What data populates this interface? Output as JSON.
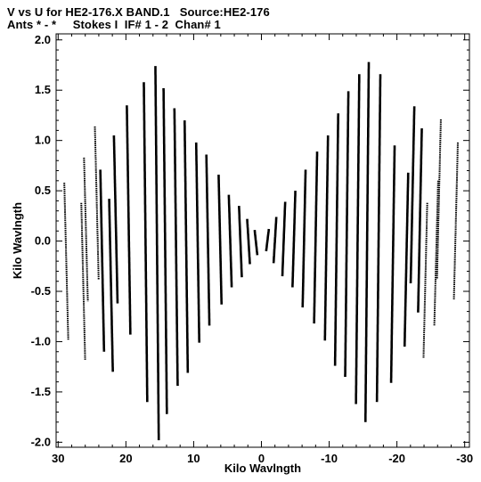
{
  "header": {
    "line1": "V vs U for HE2-176.X BAND.1   Source:HE2-176",
    "line2": "Ants * - *     Stokes I  IF# 1 - 2  Chan# 1"
  },
  "chart_data": {
    "type": "scatter",
    "title": "V vs U for HE2-176.X BAND.1   Source:HE2-176",
    "subtitle": "Ants * - *     Stokes I  IF# 1 - 2  Chan# 1",
    "xlabel": "Kilo Wavlngth",
    "ylabel": "Kilo Wavlngth",
    "xlim": [
      30.3,
      -30.7
    ],
    "ylim": [
      -2.05,
      2.06
    ],
    "x_ticks": [
      30,
      20,
      10,
      0,
      -10,
      -20,
      -30
    ],
    "x_tick_labels": [
      "30",
      "20",
      "10",
      "0",
      "-10",
      "-20",
      "-30"
    ],
    "y_ticks": [
      2.0,
      1.5,
      1.0,
      0.5,
      0.0,
      -0.5,
      -1.0,
      -1.5,
      -2.0
    ],
    "y_tick_labels": [
      "2.0",
      "1.5",
      "1.0",
      "0.5",
      "0.0",
      "-0.5",
      "-1.0",
      "-1.5",
      "-2.0"
    ],
    "grid": false,
    "marker_color": "#000000",
    "description_note": "uv-coverage tracks, each a near-vertical streak of points",
    "tracks": [
      {
        "u": 28.8,
        "v_top": 0.58,
        "v_bottom": -0.98
      },
      {
        "u": 26.3,
        "v_top": 0.38,
        "v_bottom": -1.18
      },
      {
        "u": 25.9,
        "v_top": 0.83,
        "v_bottom": -0.6
      },
      {
        "u": 24.3,
        "v_top": 1.14,
        "v_bottom": -0.38
      },
      {
        "u": 23.5,
        "v_top": 0.71,
        "v_bottom": -1.1
      },
      {
        "u": 22.2,
        "v_top": 0.42,
        "v_bottom": -1.3
      },
      {
        "u": 21.5,
        "v_top": 1.05,
        "v_bottom": -0.62
      },
      {
        "u": 19.6,
        "v_top": 1.35,
        "v_bottom": -0.93
      },
      {
        "u": 17.1,
        "v_top": 1.58,
        "v_bottom": -1.6
      },
      {
        "u": 15.4,
        "v_top": 1.74,
        "v_bottom": -1.98
      },
      {
        "u": 14.2,
        "v_top": 1.52,
        "v_bottom": -1.72
      },
      {
        "u": 12.6,
        "v_top": 1.32,
        "v_bottom": -1.44
      },
      {
        "u": 11.1,
        "v_top": 1.2,
        "v_bottom": -1.31
      },
      {
        "u": 9.4,
        "v_top": 0.98,
        "v_bottom": -1.01
      },
      {
        "u": 7.9,
        "v_top": 0.86,
        "v_bottom": -0.84
      },
      {
        "u": 6.1,
        "v_top": 0.66,
        "v_bottom": -0.63
      },
      {
        "u": 4.6,
        "v_top": 0.46,
        "v_bottom": -0.46
      },
      {
        "u": 3.1,
        "v_top": 0.35,
        "v_bottom": -0.36
      },
      {
        "u": 1.9,
        "v_top": 0.22,
        "v_bottom": -0.23
      },
      {
        "u": 0.8,
        "v_top": 0.11,
        "v_bottom": -0.14
      },
      {
        "u": -0.9,
        "v_top": 0.12,
        "v_bottom": -0.1
      },
      {
        "u": -2.0,
        "v_top": 0.24,
        "v_bottom": -0.22
      },
      {
        "u": -3.3,
        "v_top": 0.39,
        "v_bottom": -0.35
      },
      {
        "u": -4.8,
        "v_top": 0.5,
        "v_bottom": -0.46
      },
      {
        "u": -6.3,
        "v_top": 0.71,
        "v_bottom": -0.66
      },
      {
        "u": -8.0,
        "v_top": 0.89,
        "v_bottom": -0.82
      },
      {
        "u": -9.6,
        "v_top": 1.05,
        "v_bottom": -0.99
      },
      {
        "u": -11.1,
        "v_top": 1.27,
        "v_bottom": -1.24
      },
      {
        "u": -12.6,
        "v_top": 1.49,
        "v_bottom": -1.35
      },
      {
        "u": -14.2,
        "v_top": 1.66,
        "v_bottom": -1.62
      },
      {
        "u": -15.6,
        "v_top": 1.78,
        "v_bottom": -1.8
      },
      {
        "u": -17.3,
        "v_top": 1.66,
        "v_bottom": -1.6
      },
      {
        "u": -19.4,
        "v_top": 0.95,
        "v_bottom": -1.41
      },
      {
        "u": -21.4,
        "v_top": 0.68,
        "v_bottom": -1.05
      },
      {
        "u": -22.3,
        "v_top": 1.34,
        "v_bottom": -0.42
      },
      {
        "u": -23.4,
        "v_top": 1.12,
        "v_bottom": -0.71
      },
      {
        "u": -24.2,
        "v_top": 0.38,
        "v_bottom": -1.16
      },
      {
        "u": -25.8,
        "v_top": 0.6,
        "v_bottom": -0.84
      },
      {
        "u": -26.2,
        "v_top": 1.21,
        "v_bottom": -0.38
      },
      {
        "u": -28.7,
        "v_top": 0.98,
        "v_bottom": -0.58
      }
    ]
  }
}
